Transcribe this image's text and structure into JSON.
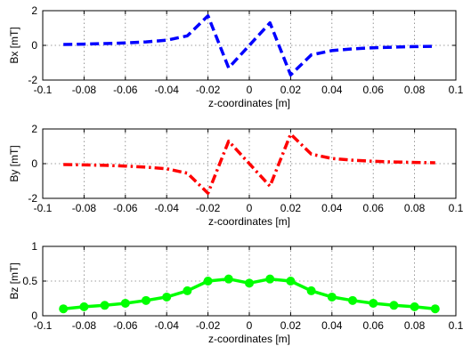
{
  "chart_data": [
    {
      "type": "line",
      "xlabel": "z-coordinates [m]",
      "ylabel": "Bx [mT]",
      "xlim": [
        -0.1,
        0.1
      ],
      "ylim": [
        -2,
        2
      ],
      "xticks": [
        "-0.1",
        "-0.08",
        "-0.06",
        "-0.04",
        "-0.02",
        "0",
        "0.02",
        "0.04",
        "0.06",
        "0.08",
        "0.1"
      ],
      "yticks": [
        "-2",
        "0",
        "2"
      ],
      "grid": true,
      "series": [
        {
          "color": "#0000ff",
          "line_style": "dashed",
          "marker": "none",
          "x": [
            -0.09,
            -0.08,
            -0.07,
            -0.06,
            -0.05,
            -0.04,
            -0.03,
            -0.02,
            -0.01,
            0.0,
            0.01,
            0.02,
            0.03,
            0.04,
            0.05,
            0.06,
            0.07,
            0.08,
            0.09
          ],
          "y": [
            0.05,
            0.07,
            0.1,
            0.14,
            0.2,
            0.3,
            0.55,
            1.7,
            -1.3,
            0.0,
            1.3,
            -1.7,
            -0.55,
            -0.3,
            -0.2,
            -0.14,
            -0.1,
            -0.07,
            -0.05
          ]
        }
      ]
    },
    {
      "type": "line",
      "xlabel": "z-coordinates [m]",
      "ylabel": "By [mT]",
      "xlim": [
        -0.1,
        0.1
      ],
      "ylim": [
        -2,
        2
      ],
      "xticks": [
        "-0.1",
        "-0.08",
        "-0.06",
        "-0.04",
        "-0.02",
        "0",
        "0.02",
        "0.04",
        "0.06",
        "0.08",
        "0.1"
      ],
      "yticks": [
        "-2",
        "0",
        "2"
      ],
      "grid": true,
      "series": [
        {
          "color": "#ff0000",
          "line_style": "dash-dot",
          "marker": "none",
          "x": [
            -0.09,
            -0.08,
            -0.07,
            -0.06,
            -0.05,
            -0.04,
            -0.03,
            -0.02,
            -0.01,
            0.0,
            0.01,
            0.02,
            0.03,
            0.04,
            0.05,
            0.06,
            0.07,
            0.08,
            0.09
          ],
          "y": [
            -0.05,
            -0.07,
            -0.1,
            -0.14,
            -0.2,
            -0.3,
            -0.55,
            -1.7,
            1.3,
            0.0,
            -1.3,
            1.7,
            0.55,
            0.3,
            0.2,
            0.14,
            0.1,
            0.07,
            0.05
          ]
        }
      ]
    },
    {
      "type": "line",
      "xlabel": "z-coordinates [m]",
      "ylabel": "Bz [mT]",
      "xlim": [
        -0.1,
        0.1
      ],
      "ylim": [
        0,
        1
      ],
      "xticks": [
        "-0.1",
        "-0.08",
        "-0.06",
        "-0.04",
        "-0.02",
        "0",
        "0.02",
        "0.04",
        "0.06",
        "0.08",
        "0.1"
      ],
      "yticks": [
        "0",
        "0.5",
        "1"
      ],
      "grid": true,
      "series": [
        {
          "color": "#00ff00",
          "line_style": "solid",
          "marker": "circle",
          "x": [
            -0.09,
            -0.08,
            -0.07,
            -0.06,
            -0.05,
            -0.04,
            -0.03,
            -0.02,
            -0.01,
            0.0,
            0.01,
            0.02,
            0.03,
            0.04,
            0.05,
            0.06,
            0.07,
            0.08,
            0.09
          ],
          "y": [
            0.1,
            0.13,
            0.15,
            0.18,
            0.22,
            0.27,
            0.36,
            0.5,
            0.53,
            0.47,
            0.53,
            0.5,
            0.36,
            0.27,
            0.22,
            0.18,
            0.15,
            0.13,
            0.1
          ]
        }
      ]
    }
  ]
}
